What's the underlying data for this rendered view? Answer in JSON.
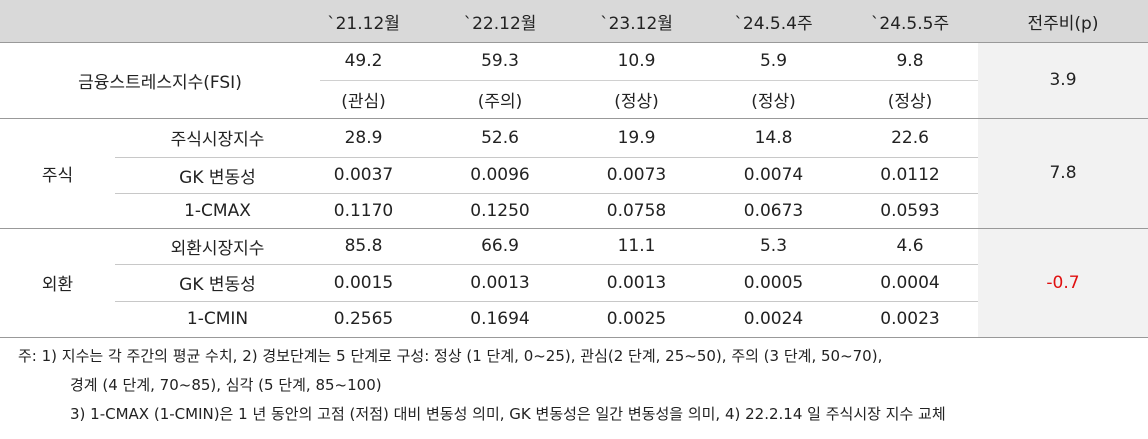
{
  "table": {
    "columns": [
      "`21.12월",
      "`22.12월",
      "`23.12월",
      "`24.5.4주",
      "`24.5.5주",
      "전주비(p)"
    ],
    "fsi": {
      "label": "금융스트레스지수(FSI)",
      "values": [
        "49.2",
        "59.3",
        "10.9",
        "5.9",
        "9.8"
      ],
      "levels": [
        "(관심)",
        "(주의)",
        "(정상)",
        "(정상)",
        "(정상)"
      ],
      "change": "3.9"
    },
    "groups": [
      {
        "label": "주식",
        "change": "7.8",
        "rows": [
          {
            "label": "주식시장지수",
            "values": [
              "28.9",
              "52.6",
              "19.9",
              "14.8",
              "22.6"
            ]
          },
          {
            "label": "GK 변동성",
            "values": [
              "0.0037",
              "0.0096",
              "0.0073",
              "0.0074",
              "0.0112"
            ]
          },
          {
            "label": "1-CMAX",
            "values": [
              "0.1170",
              "0.1250",
              "0.0758",
              "0.0673",
              "0.0593"
            ]
          }
        ]
      },
      {
        "label": "외환",
        "change": "-0.7",
        "change_color": "#e01010",
        "rows": [
          {
            "label": "외환시장지수",
            "values": [
              "85.8",
              "66.9",
              "11.1",
              "5.3",
              "4.6"
            ]
          },
          {
            "label": "GK 변동성",
            "values": [
              "0.0015",
              "0.0013",
              "0.0013",
              "0.0005",
              "0.0004"
            ]
          },
          {
            "label": "1-CMIN",
            "values": [
              "0.2565",
              "0.1694",
              "0.0025",
              "0.0024",
              "0.0023"
            ]
          }
        ]
      }
    ],
    "notes": [
      "주: 1) 지수는 각 주간의 평균 수치, 2) 경보단계는 5 단계로 구성: 정상 (1 단계, 0~25), 관심(2 단계, 25~50), 주의 (3 단계, 50~70),",
      "경계 (4 단계, 70~85), 심각 (5 단계, 85~100)",
      "3) 1-CMAX (1-CMIN)은 1 년 동안의 고점 (저점) 대비 변동성 의미, GK 변동성은 일간 변동성을 의미, 4) 22.2.14 일 주식시장 지수 교체"
    ]
  }
}
